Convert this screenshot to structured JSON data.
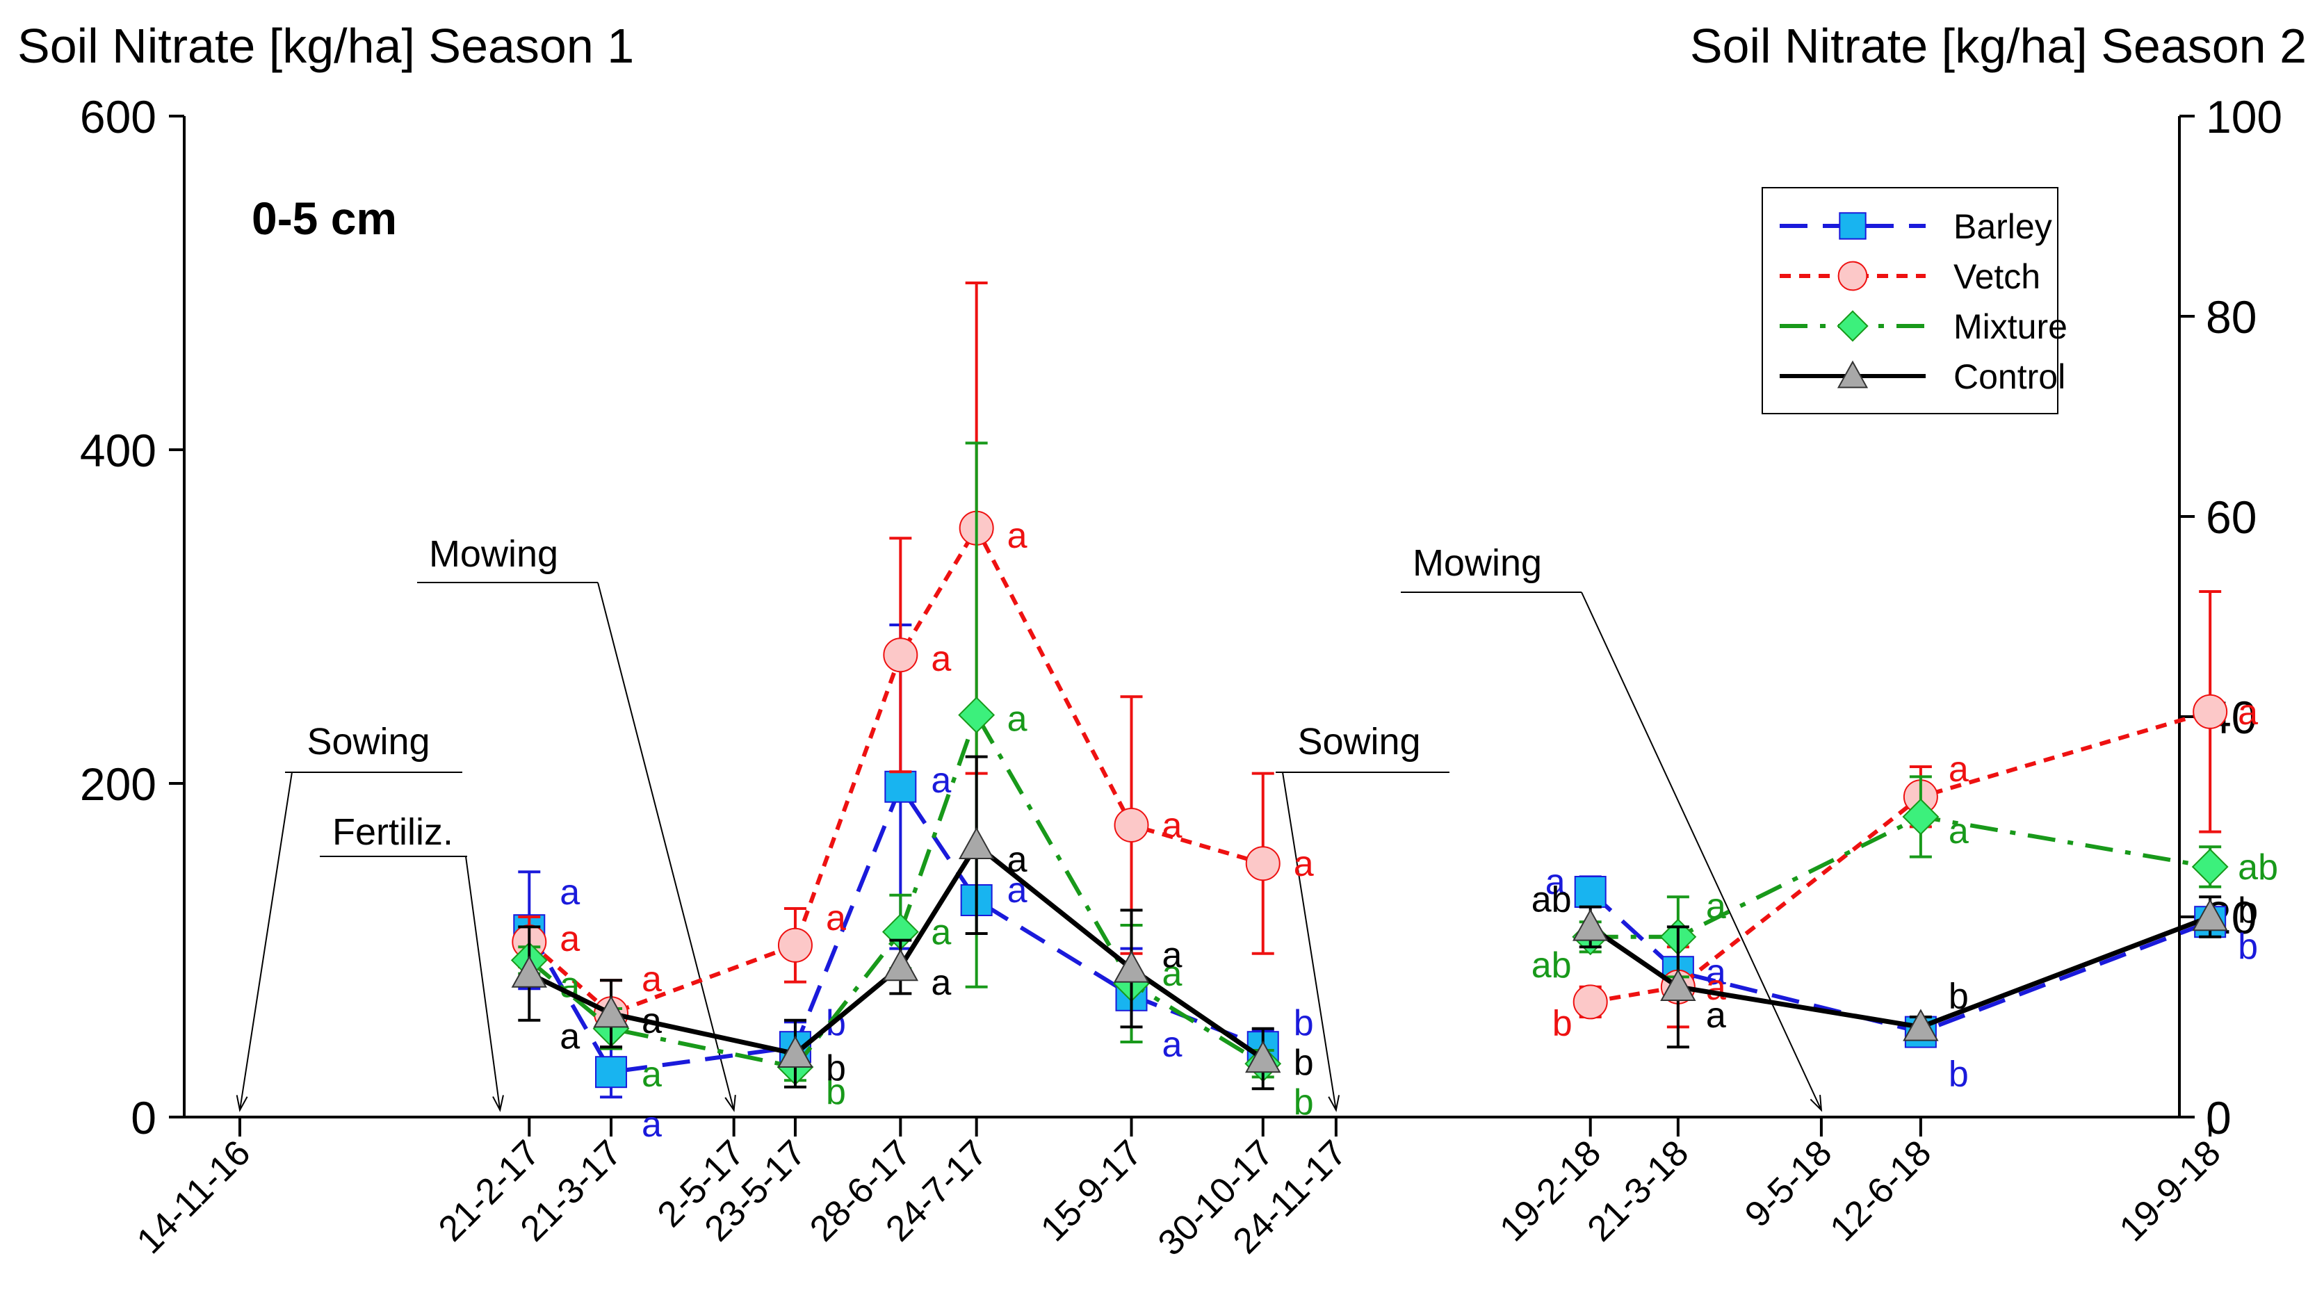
{
  "chart_data": {
    "type": "line",
    "title_left": "Soil Nitrate [kg/ha] Season 1",
    "title_right": "Soil Nitrate [kg/ha] Season 2",
    "panel_label": "0-5 cm",
    "y_left": {
      "range": [
        0,
        600
      ],
      "ticks": [
        0,
        200,
        400,
        600
      ]
    },
    "y_right": {
      "range": [
        0,
        100
      ],
      "ticks": [
        0,
        20,
        40,
        60,
        80,
        100
      ]
    },
    "x_ticks": [
      {
        "label": "14-11-16",
        "day": 0
      },
      {
        "label": "21-2-17",
        "day": 99
      },
      {
        "label": "21-3-17",
        "day": 127
      },
      {
        "label": "2-5-17",
        "day": 169
      },
      {
        "label": "23-5-17",
        "day": 190
      },
      {
        "label": "28-6-17",
        "day": 226
      },
      {
        "label": "24-7-17",
        "day": 252
      },
      {
        "label": "15-9-17",
        "day": 305
      },
      {
        "label": "30-10-17",
        "day": 350
      },
      {
        "label": "24-11-17",
        "day": 375
      },
      {
        "label": "19-2-18",
        "day": 462
      },
      {
        "label": "21-3-18",
        "day": 492
      },
      {
        "label": "9-5-18",
        "day": 541
      },
      {
        "label": "12-6-18",
        "day": 575
      },
      {
        "label": "19-9-18",
        "day": 674
      }
    ],
    "events": [
      {
        "label": "Sowing",
        "day": 0
      },
      {
        "label": "Fertiliz.",
        "day": 89
      },
      {
        "label": "Mowing",
        "day": 169
      },
      {
        "label": "Sowing",
        "day": 375
      },
      {
        "label": "Mowing",
        "day": 541
      }
    ],
    "series": [
      {
        "name": "Barley",
        "color": "#1a1adb",
        "fill": "#18b4f0",
        "marker": "square",
        "dash": "dash",
        "season1": [
          {
            "day": 99,
            "y": 112,
            "err": 35,
            "letter": "a"
          },
          {
            "day": 127,
            "y": 27,
            "err": 15,
            "letter": "a"
          },
          {
            "day": 190,
            "y": 42,
            "err": 15,
            "letter": "b"
          },
          {
            "day": 226,
            "y": 198,
            "err": 97,
            "letter": "a"
          },
          {
            "day": 252,
            "y": 130,
            "err": 8,
            "letter": "a"
          },
          {
            "day": 305,
            "y": 73,
            "err": 28,
            "letter": "a"
          },
          {
            "day": 350,
            "y": 42,
            "err": 10,
            "letter": "b"
          }
        ],
        "season2": [
          {
            "day": 462,
            "y": 22.5,
            "err": 1.5,
            "letter": "a"
          },
          {
            "day": 492,
            "y": 14.5,
            "err": 1.2,
            "letter": "a"
          },
          {
            "day": 575,
            "y": 8.5,
            "err": 1,
            "letter": "b"
          },
          {
            "day": 674,
            "y": 19.5,
            "err": 1,
            "letter": "b"
          }
        ]
      },
      {
        "name": "Vetch",
        "color": "#ee1111",
        "fill": "#fcc8c8",
        "marker": "circle",
        "dash": "dot",
        "season1": [
          {
            "day": 99,
            "y": 105,
            "err": 15,
            "letter": "a"
          },
          {
            "day": 127,
            "y": 62,
            "err": 20,
            "letter": "a"
          },
          {
            "day": 190,
            "y": 103,
            "err": 22,
            "letter": "a"
          },
          {
            "day": 226,
            "y": 277,
            "err": 70,
            "letter": "a"
          },
          {
            "day": 252,
            "y": 353,
            "err": 147,
            "letter": "a"
          },
          {
            "day": 305,
            "y": 175,
            "err": 77,
            "letter": "a"
          },
          {
            "day": 350,
            "y": 152,
            "err": 54,
            "letter": "a"
          }
        ],
        "season2": [
          {
            "day": 462,
            "y": 11.5,
            "err": 1.5,
            "letter": "b"
          },
          {
            "day": 492,
            "y": 13,
            "err": 4,
            "letter": "a"
          },
          {
            "day": 575,
            "y": 32,
            "err": 3,
            "letter": "a"
          },
          {
            "day": 674,
            "y": 40.5,
            "err": 12,
            "letter": "a"
          }
        ]
      },
      {
        "name": "Mixture",
        "color": "#18991a",
        "fill": "#3cf07c",
        "marker": "diamond",
        "dash": "dashdot",
        "season1": [
          {
            "day": 99,
            "y": 94,
            "err": 8,
            "letter": "a"
          },
          {
            "day": 127,
            "y": 53,
            "err": 12,
            "letter": "a"
          },
          {
            "day": 190,
            "y": 30,
            "err": 8,
            "letter": "b"
          },
          {
            "day": 226,
            "y": 111,
            "err": 22,
            "letter": "a"
          },
          {
            "day": 252,
            "y": 241,
            "err": 163,
            "letter": "a"
          },
          {
            "day": 305,
            "y": 80,
            "err": 35,
            "letter": "a"
          },
          {
            "day": 350,
            "y": 32,
            "err": 8,
            "letter": "b"
          }
        ],
        "season2": [
          {
            "day": 462,
            "y": 18,
            "err": 1.5,
            "letter": "ab"
          },
          {
            "day": 492,
            "y": 18,
            "err": 4,
            "letter": "a"
          },
          {
            "day": 575,
            "y": 30,
            "err": 4,
            "letter": "a"
          },
          {
            "day": 674,
            "y": 25,
            "err": 2,
            "letter": "ab"
          }
        ]
      },
      {
        "name": "Control",
        "color": "#000000",
        "fill": "#a8a8a8",
        "marker": "triangle",
        "dash": "solid",
        "season1": [
          {
            "day": 99,
            "y": 86,
            "err": 28,
            "letter": "a"
          },
          {
            "day": 127,
            "y": 62,
            "err": 20,
            "letter": "a"
          },
          {
            "day": 190,
            "y": 38,
            "err": 20,
            "letter": "b"
          },
          {
            "day": 226,
            "y": 90,
            "err": 16,
            "letter": "a"
          },
          {
            "day": 252,
            "y": 163,
            "err": 53,
            "letter": "a"
          },
          {
            "day": 305,
            "y": 89,
            "err": 35,
            "letter": "a"
          },
          {
            "day": 350,
            "y": 35,
            "err": 18,
            "letter": "b"
          }
        ],
        "season2": [
          {
            "day": 462,
            "y": 19,
            "err": 2,
            "letter": "ab"
          },
          {
            "day": 492,
            "y": 13,
            "err": 6,
            "letter": "a"
          },
          {
            "day": 575,
            "y": 9,
            "err": 1,
            "letter": "b"
          },
          {
            "day": 674,
            "y": 20,
            "err": 2,
            "letter": "b"
          }
        ]
      }
    ]
  }
}
